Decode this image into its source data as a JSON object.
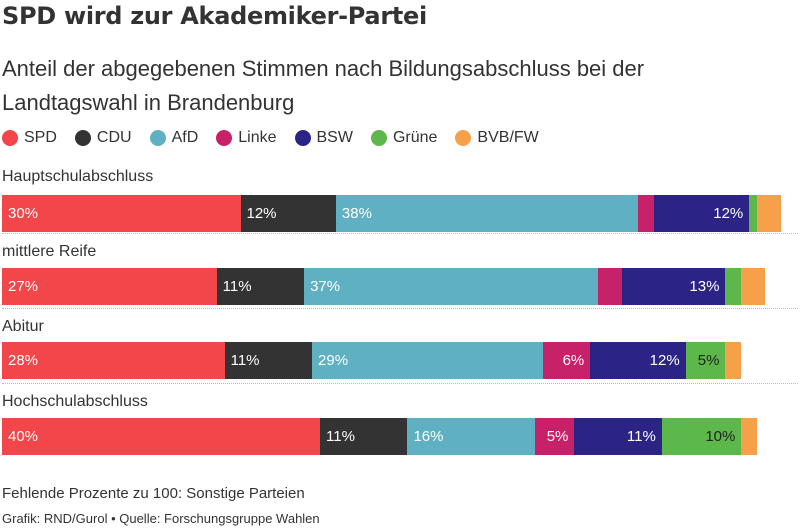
{
  "header": {
    "title": "SPD wird zur Akademiker-Partei",
    "subtitle": "Anteil der abgegebenen Stimmen nach Bildungsabschluss bei der Landtagswahl in Brandenburg"
  },
  "footer": {
    "note": "Fehlende Prozente zu 100: Sonstige Parteien",
    "source": "Grafik: RND/Gurol • Quelle: Forschungsgruppe Wahlen"
  },
  "chart_data": {
    "type": "bar",
    "orientation": "horizontal",
    "stacked": true,
    "title": "SPD wird zur Akademiker-Partei",
    "subtitle": "Anteil der abgegebenen Stimmen nach Bildungsabschluss bei der Landtagswahl in Brandenburg",
    "unit": "%",
    "xlim": [
      0,
      100
    ],
    "legend_position": "top",
    "categories": [
      "Hauptschulabschluss",
      "mittlere Reife",
      "Abitur",
      "Hochschulabschluss"
    ],
    "series": [
      {
        "name": "SPD",
        "color": "#f2464b",
        "values": [
          30,
          27,
          28,
          40
        ],
        "labels": [
          "30%",
          "27%",
          "28%",
          "40%"
        ],
        "align": "left"
      },
      {
        "name": "CDU",
        "color": "#333333",
        "values": [
          12,
          11,
          11,
          11
        ],
        "labels": [
          "12%",
          "11%",
          "11%",
          "11%"
        ],
        "align": "left"
      },
      {
        "name": "AfD",
        "color": "#5fb0c3",
        "values": [
          38,
          37,
          29,
          16
        ],
        "labels": [
          "38%",
          "37%",
          "29%",
          "16%"
        ],
        "align": "left"
      },
      {
        "name": "Linke",
        "color": "#c7216a",
        "values": [
          2,
          3,
          6,
          5
        ],
        "labels": [
          "",
          "",
          "6%",
          "5%"
        ],
        "align": "right"
      },
      {
        "name": "BSW",
        "color": "#2b2486",
        "values": [
          12,
          13,
          12,
          11
        ],
        "labels": [
          "12%",
          "13%",
          "12%",
          "11%"
        ],
        "align": "right"
      },
      {
        "name": "Grüne",
        "color": "#5cb84a",
        "values": [
          1,
          2,
          5,
          10
        ],
        "labels": [
          "",
          "",
          "5%",
          "10%"
        ],
        "align": "right",
        "label_dark": true
      },
      {
        "name": "BVB/FW",
        "color": "#f7a04a",
        "values": [
          3,
          3,
          2,
          2
        ],
        "labels": [
          "",
          "",
          "",
          ""
        ],
        "align": "right"
      }
    ]
  }
}
